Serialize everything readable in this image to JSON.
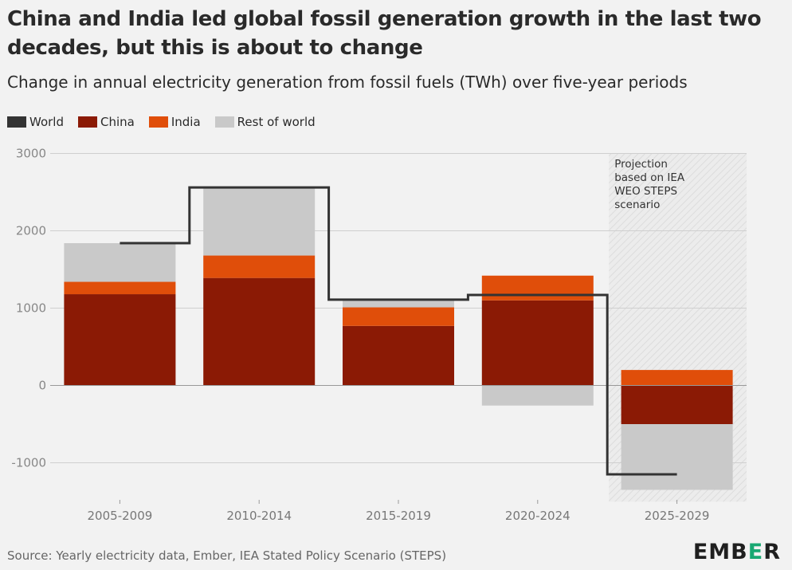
{
  "title": "China and India led global fossil generation growth in the last two decades, but this is about to change",
  "subtitle": "Change in annual electricity generation from fossil fuels (TWh) over five-year periods",
  "legend": [
    {
      "label": "World",
      "color": "#333333"
    },
    {
      "label": "China",
      "color": "#8b1a05"
    },
    {
      "label": "India",
      "color": "#e04e0a"
    },
    {
      "label": "Rest of world",
      "color": "#c9c9c9"
    }
  ],
  "source": "Source: Yearly electricity data, Ember, IEA Stated Policy Scenario (STEPS)",
  "logo": {
    "pre": "EMB",
    "accent": "E",
    "post": "R"
  },
  "chart_data": {
    "type": "bar",
    "stacked": true,
    "categories": [
      "2005-2009",
      "2010-2014",
      "2015-2019",
      "2020-2024",
      "2025-2029"
    ],
    "series": [
      {
        "name": "China",
        "color": "#8b1a05",
        "values": [
          1180,
          1390,
          770,
          1100,
          -500
        ]
      },
      {
        "name": "India",
        "color": "#e04e0a",
        "values": [
          160,
          290,
          240,
          320,
          200
        ]
      },
      {
        "name": "Rest of world",
        "color": "#c9c9c9",
        "values": [
          500,
          880,
          100,
          -260,
          -850
        ]
      }
    ],
    "line": {
      "name": "World",
      "color": "#333333",
      "values": [
        1840,
        2560,
        1110,
        1170,
        -1150
      ]
    },
    "yticks": [
      3000,
      2000,
      1000,
      0,
      -1000
    ],
    "ylim": [
      -1400,
      3000
    ],
    "grid": true,
    "projection_label": [
      "Projection",
      "based on IEA",
      "WEO STEPS",
      "scenario"
    ],
    "projection_category": "2025-2029"
  }
}
